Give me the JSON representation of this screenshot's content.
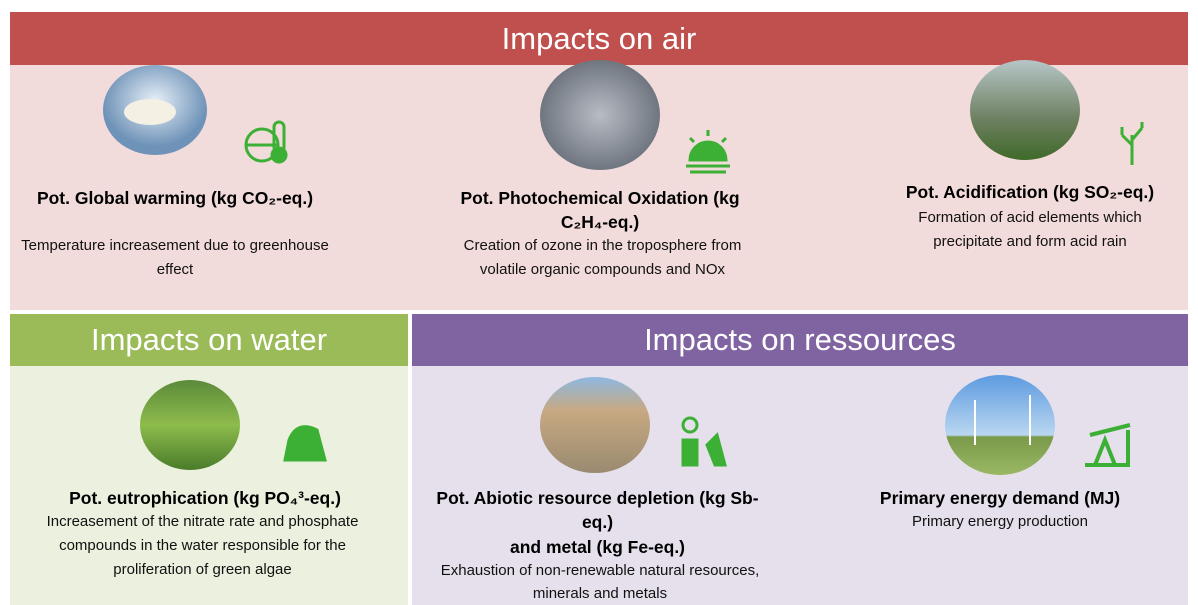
{
  "sections": [
    {
      "title": "Impacts on air",
      "items": [
        {
          "title": "Pot. Global warming (kg CO₂-eq.)",
          "description": "Temperature increasement due to greenhouse effect"
        },
        {
          "title": "Pot.  Photochemical Oxidation (kg C₂H₄-eq.)",
          "description": "Creation of ozone in the troposphere from volatile organic compounds and NOx"
        },
        {
          "title": "Pot. Acidification (kg SO₂-eq.)",
          "description": "Formation of acid elements which precipitate and form acid rain"
        }
      ]
    },
    {
      "title": "Impacts on water",
      "items": [
        {
          "title": "Pot. eutrophication (kg PO₄³-eq.)",
          "description": "Increasement of the nitrate rate and phosphate compounds in the water responsible for the proliferation of green algae"
        }
      ]
    },
    {
      "title": "Impacts on ressources",
      "items": [
        {
          "title": "Pot. Abiotic resource depletion (kg Sb-eq.)",
          "title_continued": "and metal (kg Fe-eq.)",
          "description": "Exhaustion of non-renewable natural resources, minerals and metals"
        },
        {
          "title": "Primary energy demand (MJ)",
          "description": "Primary energy production"
        }
      ]
    }
  ]
}
